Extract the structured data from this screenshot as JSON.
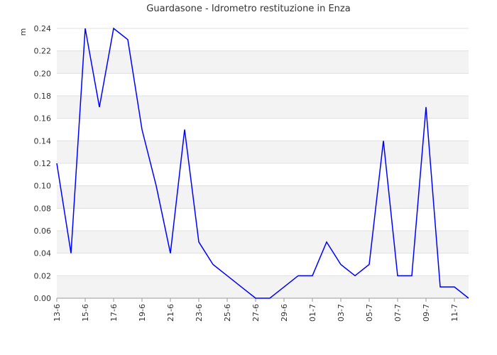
{
  "chart_data": {
    "type": "line",
    "title": "Guardasone - Idrometro restituzione in Enza",
    "y_label": "m",
    "categories": [
      "13-6",
      null,
      "15-6",
      null,
      "17-6",
      null,
      "19-6",
      null,
      "21-6",
      null,
      "23-6",
      null,
      "25-6",
      null,
      "27-6",
      null,
      "29-6",
      null,
      "01-7",
      null,
      "03-7",
      null,
      "05-7",
      null,
      "07-7",
      null,
      "09-7",
      null,
      "11-7",
      null
    ],
    "values": [
      0.12,
      0.04,
      0.24,
      0.17,
      0.24,
      0.23,
      0.15,
      0.1,
      0.04,
      0.15,
      0.05,
      0.03,
      0.02,
      0.01,
      0.0,
      0.0,
      0.01,
      0.02,
      0.02,
      0.05,
      0.03,
      0.02,
      0.03,
      0.14,
      0.02,
      0.02,
      0.17,
      0.01,
      0.01,
      0.0
    ],
    "color": "#0000ff",
    "ylim": [
      0,
      0.24
    ],
    "yticks": [
      {
        "value": 0,
        "label": "0.00"
      },
      {
        "value": 0.02,
        "label": "0.02"
      },
      {
        "value": 0.04,
        "label": "0.04"
      },
      {
        "value": 0.06,
        "label": "0.06"
      },
      {
        "value": 0.08,
        "label": "0.08"
      },
      {
        "value": 0.1,
        "label": "0.10"
      },
      {
        "value": 0.12,
        "label": "0.12"
      },
      {
        "value": 0.14,
        "label": "0.14"
      },
      {
        "value": 0.16,
        "label": "0.16"
      },
      {
        "value": 0.18,
        "label": "0.18"
      },
      {
        "value": 0.2,
        "label": "0.20"
      },
      {
        "value": 0.22,
        "label": "0.22"
      },
      {
        "value": 0.24,
        "label": "0.24"
      }
    ],
    "grid": true
  }
}
